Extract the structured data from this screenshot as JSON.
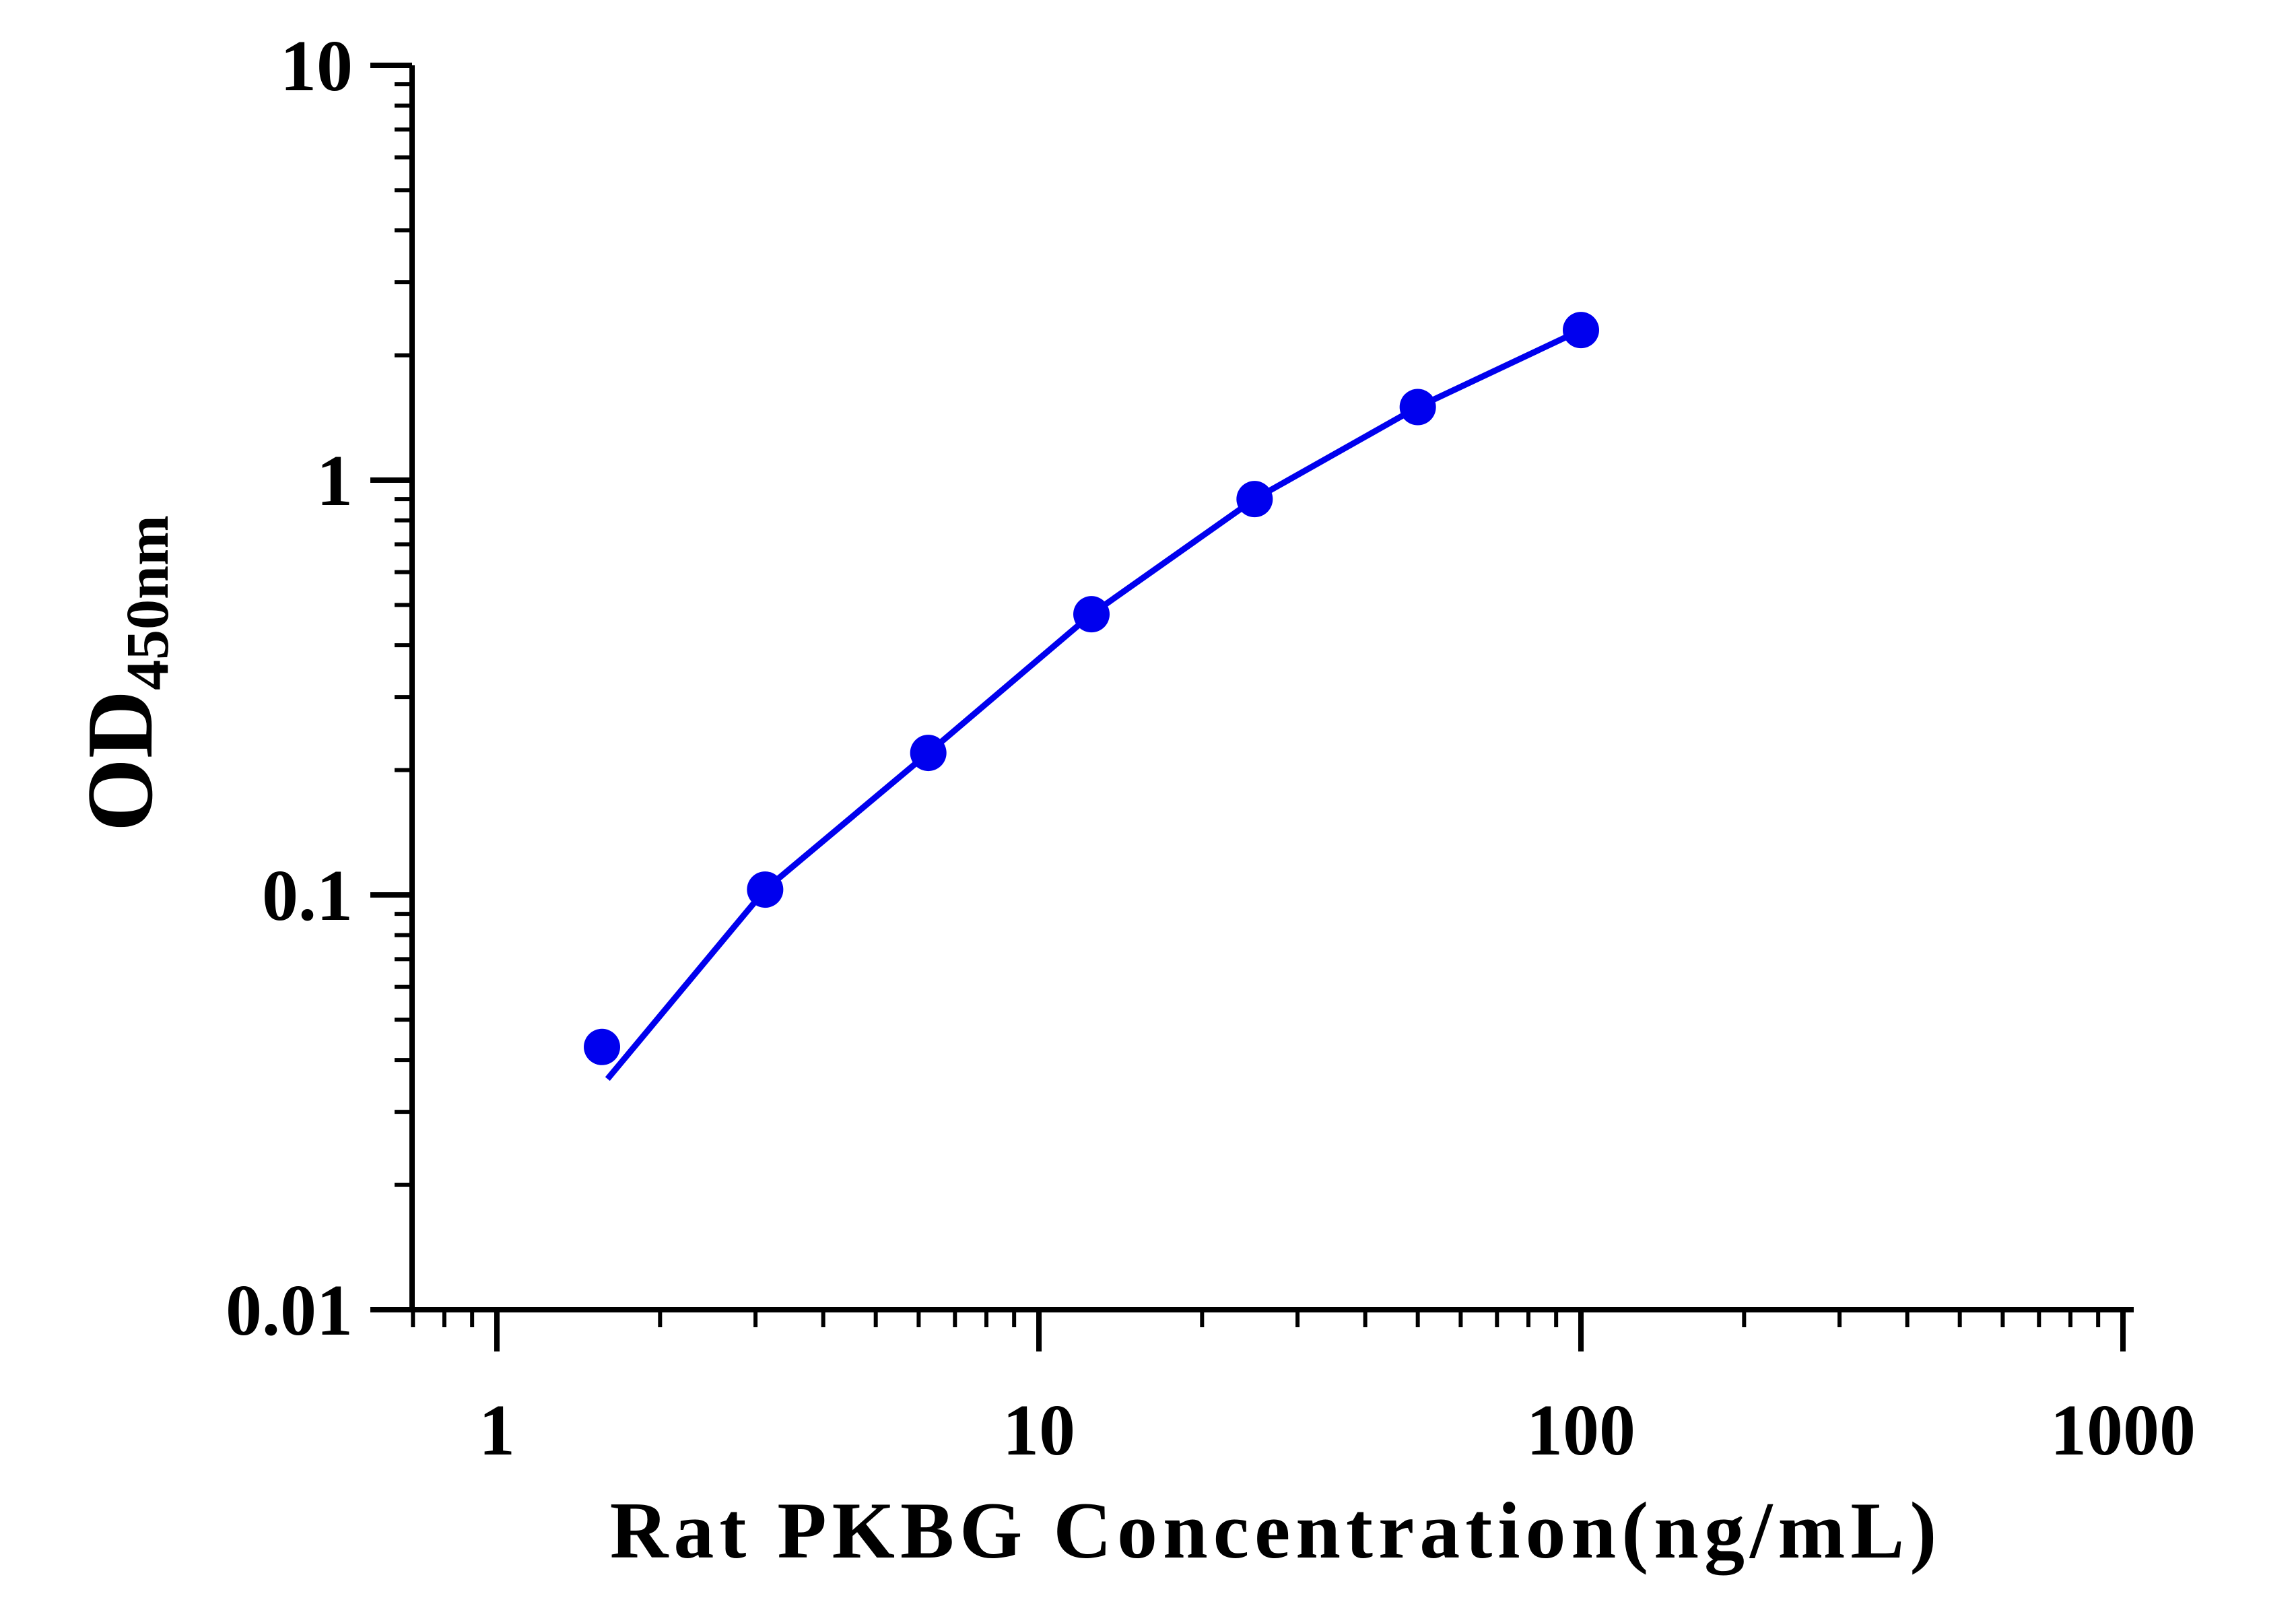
{
  "chart_data": {
    "type": "line",
    "title": "",
    "xlabel": "Rat PKBG Concentration(ng/mL)",
    "ylabel": {
      "main": "OD",
      "subscript": "450nm"
    },
    "x_scale": "log",
    "y_scale": "log",
    "xlim": [
      0.7,
      1000
    ],
    "ylim": [
      0.01,
      10
    ],
    "x_tick_labels": [
      "1",
      "10",
      "100",
      "1000"
    ],
    "y_tick_labels": [
      "0.01",
      "0.1",
      "1",
      "10"
    ],
    "grid": false,
    "legend": "none",
    "series": [
      {
        "color": "#0000ee",
        "points": [
          {
            "x": 1.5625,
            "y": 0.043
          },
          {
            "x": 3.125,
            "y": 0.103
          },
          {
            "x": 6.25,
            "y": 0.22
          },
          {
            "x": 12.5,
            "y": 0.475
          },
          {
            "x": 25,
            "y": 0.9
          },
          {
            "x": 50,
            "y": 1.5
          },
          {
            "x": 100,
            "y": 2.3
          }
        ],
        "fit_curve": [
          {
            "x": 1.6,
            "y": 0.036
          },
          {
            "x": 3.125,
            "y": 0.103
          },
          {
            "x": 6.25,
            "y": 0.22
          },
          {
            "x": 12.5,
            "y": 0.475
          },
          {
            "x": 25,
            "y": 0.9
          },
          {
            "x": 50,
            "y": 1.5
          },
          {
            "x": 100,
            "y": 2.3
          }
        ]
      }
    ]
  }
}
